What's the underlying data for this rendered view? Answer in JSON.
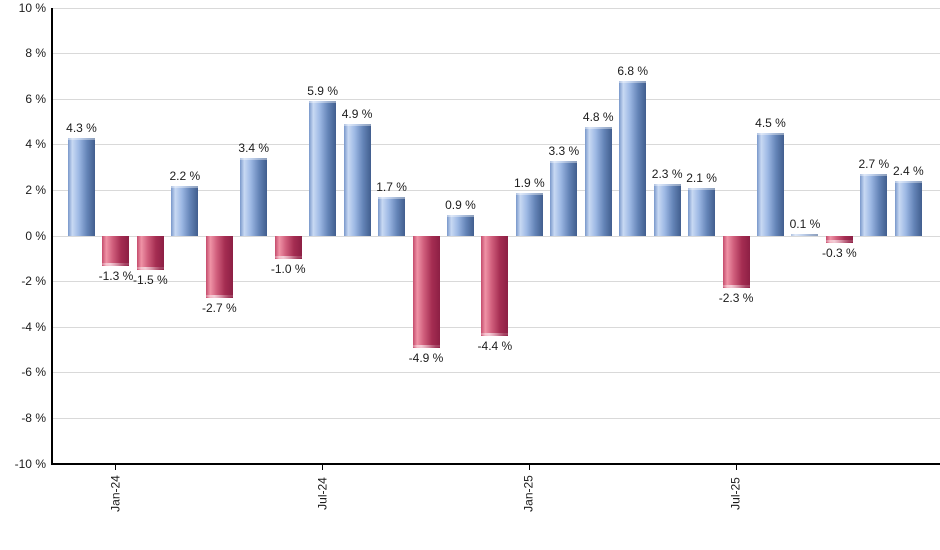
{
  "page": {
    "background": "#ffffff"
  },
  "chart_data": {
    "type": "bar",
    "title": "",
    "unit": "%",
    "ylim": [
      -10,
      10
    ],
    "grid": true,
    "legend": "none",
    "bars": [
      {
        "value": 4.3,
        "label": "4.3 %"
      },
      {
        "value": -1.3,
        "label": "-1.3 %"
      },
      {
        "value": -1.5,
        "label": "-1.5 %"
      },
      {
        "value": 2.2,
        "label": "2.2 %"
      },
      {
        "value": -2.7,
        "label": "-2.7 %"
      },
      {
        "value": 3.4,
        "label": "3.4 %"
      },
      {
        "value": -1.0,
        "label": "-1.0 %"
      },
      {
        "value": 5.9,
        "label": "5.9 %"
      },
      {
        "value": 4.9,
        "label": "4.9 %"
      },
      {
        "value": 1.7,
        "label": "1.7 %"
      },
      {
        "value": -4.9,
        "label": "-4.9 %"
      },
      {
        "value": 0.9,
        "label": "0.9 %"
      },
      {
        "value": -4.4,
        "label": "-4.4 %"
      },
      {
        "value": 1.9,
        "label": "1.9 %"
      },
      {
        "value": 3.3,
        "label": "3.3 %"
      },
      {
        "value": 4.8,
        "label": "4.8 %"
      },
      {
        "value": 6.8,
        "label": "6.8 %"
      },
      {
        "value": 2.3,
        "label": "2.3 %"
      },
      {
        "value": 2.1,
        "label": "2.1 %"
      },
      {
        "value": -2.3,
        "label": "-2.3 %"
      },
      {
        "value": 4.5,
        "label": "4.5 %"
      },
      {
        "value": 0.1,
        "label": "0.1 %"
      },
      {
        "value": -0.3,
        "label": "-0.3 %"
      },
      {
        "value": 2.7,
        "label": "2.7 %"
      },
      {
        "value": 2.4,
        "label": "2.4 %"
      }
    ],
    "y_ticks": [
      {
        "value": 10,
        "label": "10 %"
      },
      {
        "value": 8,
        "label": "8 %"
      },
      {
        "value": 6,
        "label": "6 %"
      },
      {
        "value": 4,
        "label": "4 %"
      },
      {
        "value": 2,
        "label": "2 %"
      },
      {
        "value": 0,
        "label": "0 %"
      },
      {
        "value": -2,
        "label": "-2 %"
      },
      {
        "value": -4,
        "label": "-4 %"
      },
      {
        "value": -6,
        "label": "-6 %"
      },
      {
        "value": -8,
        "label": "-8 %"
      },
      {
        "value": -10,
        "label": "-10 %"
      }
    ],
    "x_ticks": [
      {
        "bar_index": 1,
        "label": "Jan-24"
      },
      {
        "bar_index": 7,
        "label": "Jul-24"
      },
      {
        "bar_index": 13,
        "label": "Jan-25"
      },
      {
        "bar_index": 19,
        "label": "Jul-25"
      }
    ],
    "colors": {
      "positive_edge": "#7897ca",
      "positive_highlight": "#c8d9f3",
      "positive_mid": "#9db8e4",
      "positive_shade": "#6585b8",
      "positive_dark": "#415e8e",
      "negative_edge": "#c44b6c",
      "negative_highlight": "#ef93a6",
      "negative_mid": "#d05e7c",
      "negative_shade": "#a52d52",
      "negative_dark": "#8c1f44",
      "gridline": "#d9d9d9",
      "axis": "#000000",
      "label_text": "#1b1b1b"
    }
  }
}
